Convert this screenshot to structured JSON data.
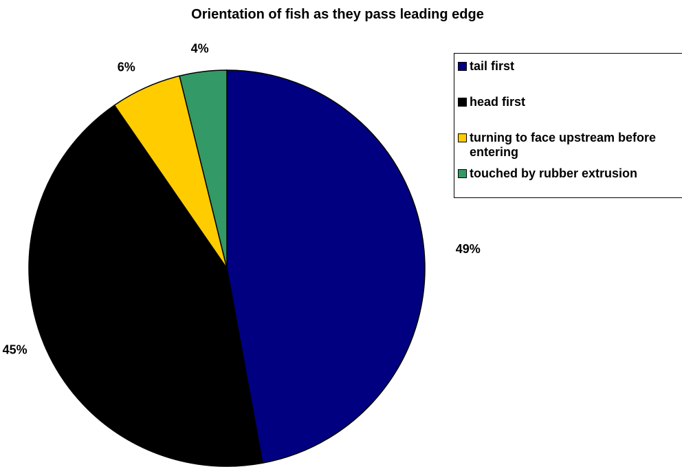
{
  "chart_data": {
    "type": "pie",
    "title": "Orientation of fish as they pass leading edge",
    "slices": [
      {
        "name": "tail first",
        "value": 49,
        "label": "49%",
        "color": "#000080"
      },
      {
        "name": "head first",
        "value": 45,
        "label": "45%",
        "color": "#000000"
      },
      {
        "name": "turning to face upstream before entering",
        "value": 6,
        "label": "6%",
        "color": "#ffcc00"
      },
      {
        "name": "touched by rubber extrusion",
        "value": 4,
        "label": "4%",
        "color": "#339966"
      }
    ],
    "start_angle_deg": 0,
    "direction": "clockwise",
    "legend_position": "right",
    "label_position": "outside"
  },
  "legend": {
    "items": [
      {
        "label": "tail first",
        "color": "#000080"
      },
      {
        "label": "head first",
        "color": "#000000"
      },
      {
        "label": "turning to face upstream before entering",
        "color": "#ffcc00"
      },
      {
        "label": "touched by rubber extrusion",
        "color": "#339966"
      }
    ]
  }
}
